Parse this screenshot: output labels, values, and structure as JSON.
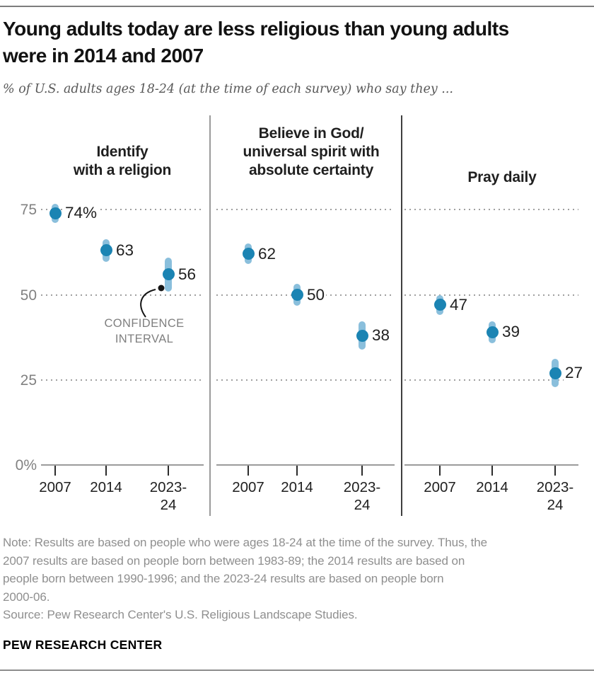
{
  "header": {
    "title_lines": [
      "Young adults today are less religious than young adults",
      "were in 2014 and 2007"
    ],
    "subtitle": "% of U.S. adults ages 18-24 (at the time of each survey) who say they ..."
  },
  "chart_data": {
    "type": "scatter",
    "subtype": "dot-plot-with-confidence-intervals",
    "categories": [
      "2007",
      "2014",
      "2023-24"
    ],
    "ylim": [
      0,
      100
    ],
    "yticks": [
      {
        "value": 75,
        "label": "75"
      },
      {
        "value": 50,
        "label": "50"
      },
      {
        "value": 25,
        "label": "25"
      },
      {
        "value": 0,
        "label": "0%"
      }
    ],
    "grid": "dotted horizontal gridlines at 25, 50, 75; solid axis at 0",
    "colors": {
      "dot": "#1b84b3",
      "ci": "#8abfdc"
    },
    "panels": [
      {
        "title_lines": [
          "Identify",
          "with a religion"
        ],
        "points": [
          {
            "category": "2007",
            "value": 74,
            "label": "74%",
            "ci_half": 2.8
          },
          {
            "category": "2014",
            "value": 63,
            "label": "63",
            "ci_half": 3.4
          },
          {
            "category": "2023-24",
            "value": 56,
            "label": "56",
            "ci_half": 5.0
          }
        ]
      },
      {
        "title_lines": [
          "Believe in God/",
          "universal spirit with",
          "absolute certainty"
        ],
        "points": [
          {
            "category": "2007",
            "value": 62,
            "label": "62",
            "ci_half": 3.0
          },
          {
            "category": "2014",
            "value": 50,
            "label": "50",
            "ci_half": 3.2
          },
          {
            "category": "2023-24",
            "value": 38,
            "label": "38",
            "ci_half": 4.1
          }
        ]
      },
      {
        "title_lines": [
          "Pray daily"
        ],
        "points": [
          {
            "category": "2007",
            "value": 47,
            "label": "47",
            "ci_half": 3.0
          },
          {
            "category": "2014",
            "value": 39,
            "label": "39",
            "ci_half": 3.2
          },
          {
            "category": "2023-24",
            "value": 27,
            "label": "27",
            "ci_half": 4.2
          }
        ]
      }
    ],
    "annotation": {
      "lines": [
        "CONFIDENCE",
        "INTERVAL"
      ],
      "points_to": "confidence interval of the 2023-24 point in the first panel"
    }
  },
  "footer": {
    "note_lines": [
      "Note: Results are based on people who were ages 18-24 at the time of the survey. Thus, the",
      "2007 results are based on people born between 1983-89; the 2014 results are based on",
      "people born between 1990-1996; and the 2023-24 results are based on people born",
      "2000-06."
    ],
    "source": "Source: Pew Research Center's U.S. Religious Landscape Studies.",
    "brand": "PEW RESEARCH CENTER"
  }
}
